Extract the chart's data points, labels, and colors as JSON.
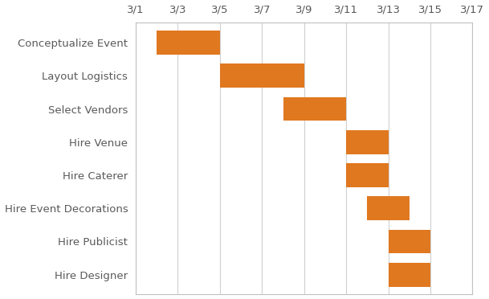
{
  "tasks": [
    "Conceptualize Event",
    "Layout Logistics",
    "Select Vendors",
    "Hire Venue",
    "Hire Caterer",
    "Hire Event Decorations",
    "Hire Publicist",
    "Hire Designer"
  ],
  "start_days": [
    2,
    5,
    8,
    11,
    11,
    12,
    13,
    13
  ],
  "durations": [
    3,
    4,
    3,
    2,
    2,
    2,
    2,
    2
  ],
  "bar_color": "#E07820",
  "bar_height": 0.72,
  "x_min": 1,
  "x_max": 17,
  "x_ticks": [
    1,
    3,
    5,
    7,
    9,
    11,
    13,
    15,
    17
  ],
  "x_tick_labels": [
    "3/1",
    "3/3",
    "3/5",
    "3/7",
    "3/9",
    "3/11",
    "3/13",
    "3/15",
    "3/17"
  ],
  "background_color": "#ffffff",
  "grid_color": "#d0d0d0",
  "text_color": "#595959",
  "tick_label_fontsize": 9.5,
  "task_label_fontsize": 9.5,
  "spine_color": "#c0c0c0"
}
